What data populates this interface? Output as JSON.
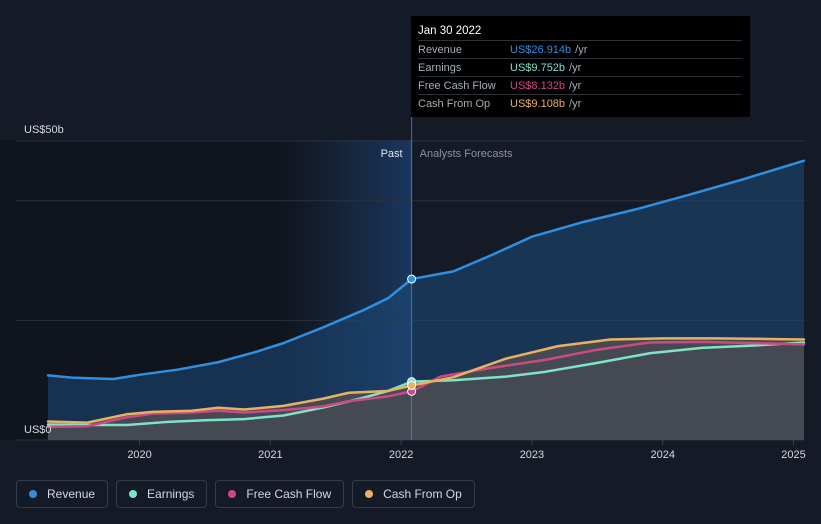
{
  "chart_data": {
    "type": "line",
    "y_unit_top_label": "US$50b",
    "y_unit_bottom_label": "US$0",
    "ylim": [
      0,
      50
    ],
    "xlim": [
      2019.3,
      2025.08
    ],
    "divider_x": 2022.08,
    "past_label": "Past",
    "forecast_label": "Analysts Forecasts",
    "x_ticks": [
      {
        "value": 2020,
        "label": "2020"
      },
      {
        "value": 2021,
        "label": "2021"
      },
      {
        "value": 2022,
        "label": "2022"
      },
      {
        "value": 2023,
        "label": "2023"
      },
      {
        "value": 2024,
        "label": "2024"
      },
      {
        "value": 2025,
        "label": "2025"
      }
    ],
    "series": [
      {
        "key": "revenue",
        "name": "Revenue",
        "color": "#2f8fe0",
        "x": [
          2019.3,
          2019.5,
          2019.8,
          2020.0,
          2020.3,
          2020.6,
          2020.9,
          2021.1,
          2021.4,
          2021.7,
          2021.9,
          2022.08,
          2022.4,
          2022.7,
          2023.0,
          2023.4,
          2023.8,
          2024.2,
          2024.6,
          2025.08
        ],
        "values": [
          10.8,
          10.4,
          10.2,
          10.9,
          11.8,
          13.0,
          14.8,
          16.2,
          18.8,
          21.6,
          23.7,
          26.914,
          28.2,
          31.0,
          34.0,
          36.5,
          38.6,
          41.0,
          43.5,
          46.7
        ]
      },
      {
        "key": "earnings",
        "name": "Earnings",
        "color": "#7fe3c8",
        "x": [
          2019.3,
          2019.6,
          2019.9,
          2020.2,
          2020.5,
          2020.8,
          2021.1,
          2021.4,
          2021.7,
          2021.9,
          2022.08,
          2022.4,
          2022.8,
          2023.1,
          2023.5,
          2023.9,
          2024.3,
          2024.7,
          2025.08
        ],
        "values": [
          2.6,
          2.5,
          2.5,
          3.0,
          3.3,
          3.5,
          4.1,
          5.4,
          7.0,
          8.2,
          9.752,
          10.0,
          10.6,
          11.4,
          12.9,
          14.5,
          15.4,
          15.8,
          16.3
        ]
      },
      {
        "key": "fcf",
        "name": "Free Cash Flow",
        "color": "#cc4a82",
        "x": [
          2019.3,
          2019.6,
          2019.9,
          2020.1,
          2020.4,
          2020.6,
          2020.8,
          2021.1,
          2021.4,
          2021.6,
          2021.9,
          2022.08,
          2022.3,
          2022.7,
          2023.1,
          2023.5,
          2023.9,
          2024.3,
          2024.7,
          2025.08
        ],
        "values": [
          2.2,
          2.3,
          3.8,
          4.4,
          4.6,
          4.9,
          4.6,
          5.0,
          5.6,
          6.5,
          7.3,
          8.132,
          10.6,
          12.1,
          13.4,
          15.1,
          16.3,
          16.4,
          16.2,
          16.0
        ]
      },
      {
        "key": "cfo",
        "name": "Cash From Op",
        "color": "#e8b163",
        "x": [
          2019.3,
          2019.6,
          2019.9,
          2020.1,
          2020.4,
          2020.6,
          2020.8,
          2021.1,
          2021.4,
          2021.6,
          2021.9,
          2022.08,
          2022.4,
          2022.8,
          2023.2,
          2023.6,
          2024.0,
          2024.4,
          2024.8,
          2025.08
        ],
        "values": [
          3.1,
          2.9,
          4.3,
          4.7,
          4.9,
          5.4,
          5.1,
          5.7,
          6.9,
          7.9,
          8.2,
          9.108,
          10.5,
          13.6,
          15.7,
          16.8,
          17.0,
          17.0,
          16.9,
          16.8
        ]
      }
    ]
  },
  "tooltip": {
    "date": "Jan 30 2022",
    "unit": "/yr",
    "rows": [
      {
        "label": "Revenue",
        "value": "US$26.914b",
        "color": "#2f8fe0"
      },
      {
        "label": "Earnings",
        "value": "US$9.752b",
        "color": "#7fe3c8"
      },
      {
        "label": "Free Cash Flow",
        "value": "US$8.132b",
        "color": "#cc4a82"
      },
      {
        "label": "Cash From Op",
        "value": "US$9.108b",
        "color": "#e8b163"
      }
    ]
  },
  "legend": [
    {
      "label": "Revenue",
      "color": "#2f8fe0"
    },
    {
      "label": "Earnings",
      "color": "#7fe3c8"
    },
    {
      "label": "Free Cash Flow",
      "color": "#cc4a82"
    },
    {
      "label": "Cash From Op",
      "color": "#e8b163"
    }
  ]
}
